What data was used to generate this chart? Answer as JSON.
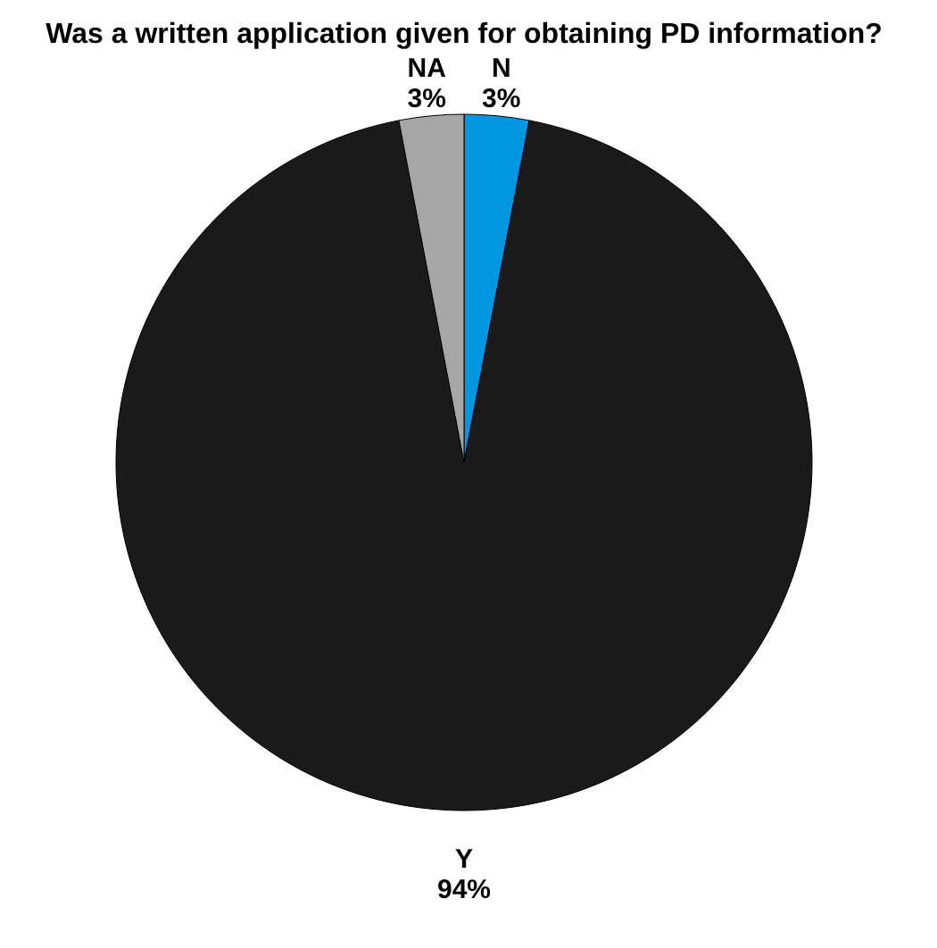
{
  "chart_data": {
    "type": "pie",
    "title": "Was a written application given for obtaining\nPD information?",
    "categories": [
      "N",
      "Y",
      "NA"
    ],
    "values": [
      3,
      94,
      3
    ],
    "colors": [
      "#0096e0",
      "#1a1a1a",
      "#a6a6a6"
    ],
    "value_labels": [
      "3%",
      "94%",
      "3%"
    ],
    "legend": false
  }
}
